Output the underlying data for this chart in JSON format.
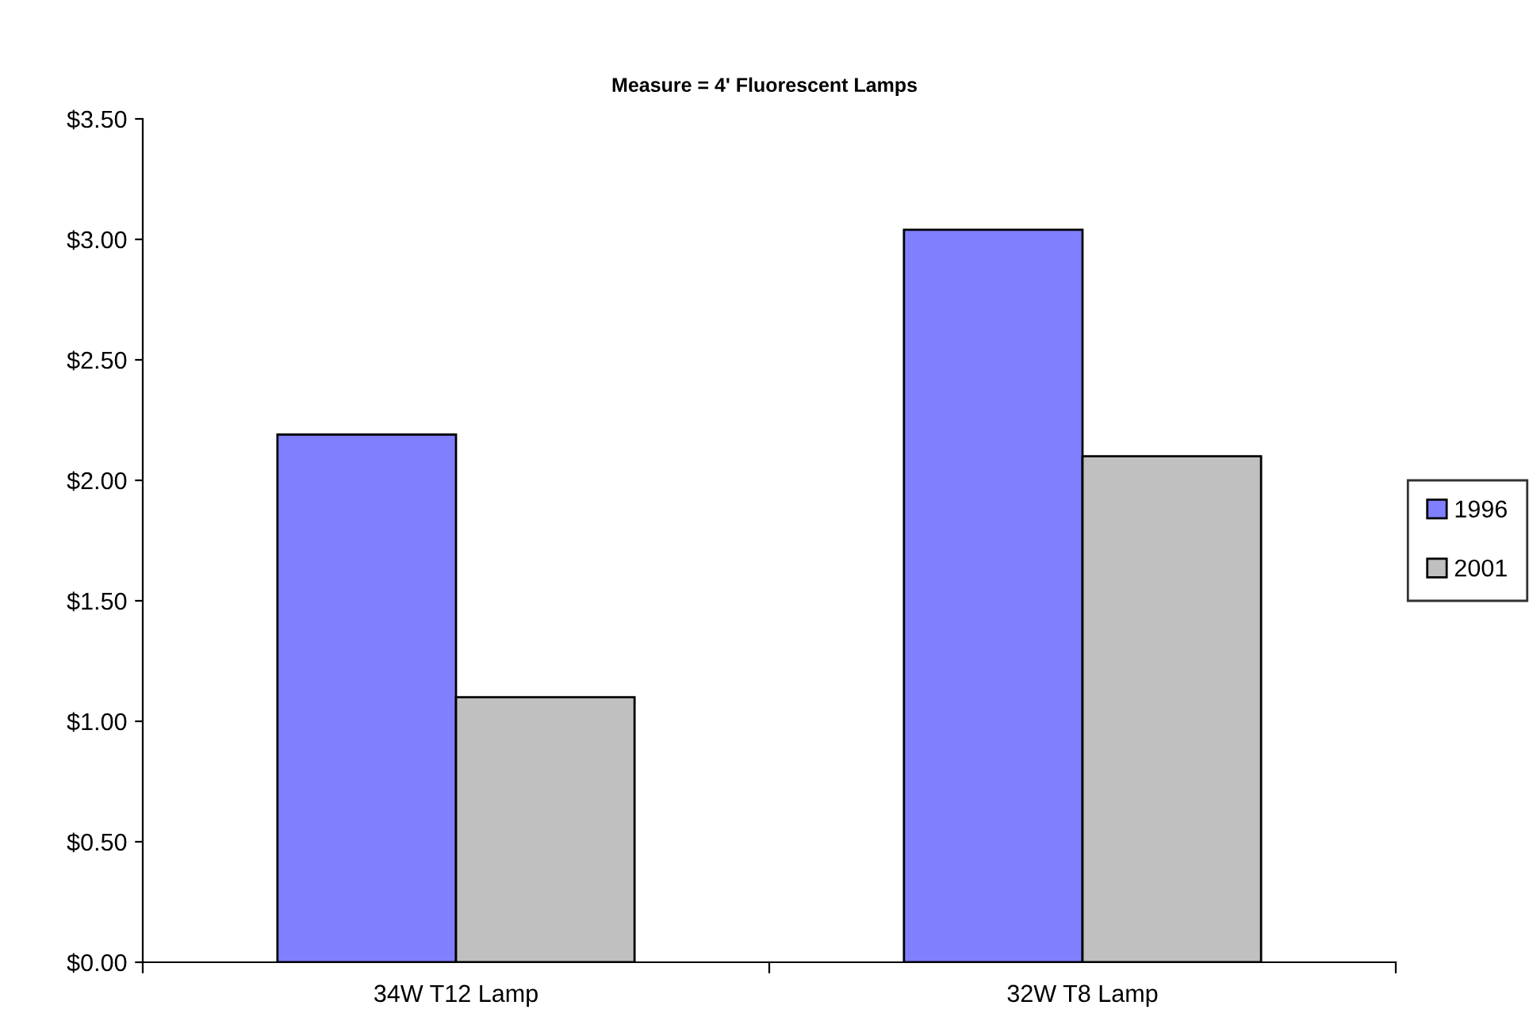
{
  "chart_data": {
    "type": "bar",
    "title": "Measure = 4' Fluorescent Lamps",
    "categories": [
      "34W T12 Lamp",
      "32W T8 Lamp"
    ],
    "series": [
      {
        "name": "1996",
        "color": "#8080ff",
        "values": [
          2.19,
          3.04
        ]
      },
      {
        "name": "2001",
        "color": "#c0c0c0",
        "values": [
          1.1,
          2.1
        ]
      }
    ],
    "ylim": [
      0,
      3.5
    ],
    "yticks": [
      {
        "value": 0,
        "label": "$0.00"
      },
      {
        "value": 0.5,
        "label": "$0.50"
      },
      {
        "value": 1,
        "label": "$1.00"
      },
      {
        "value": 1.5,
        "label": "$1.50"
      },
      {
        "value": 2,
        "label": "$2.00"
      },
      {
        "value": 2.5,
        "label": "$2.50"
      },
      {
        "value": 3,
        "label": "$3.00"
      },
      {
        "value": 3.5,
        "label": "$3.50"
      }
    ],
    "grid": false,
    "legend": "right"
  }
}
